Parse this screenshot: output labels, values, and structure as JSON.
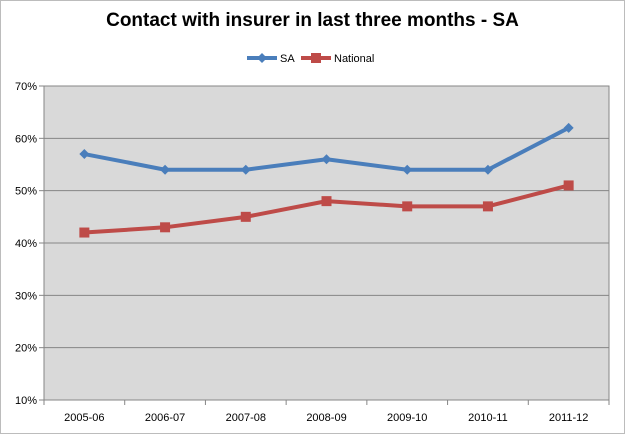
{
  "chart_data": {
    "type": "line",
    "title": "Contact with insurer in last three months - SA",
    "categories": [
      "2005-06",
      "2006-07",
      "2007-08",
      "2008-09",
      "2009-10",
      "2010-11",
      "2011-12"
    ],
    "series": [
      {
        "name": "SA",
        "values": [
          57,
          54,
          54,
          56,
          54,
          54,
          62
        ],
        "color": "#4a7ebb",
        "marker": "diamond"
      },
      {
        "name": "National",
        "values": [
          42,
          43,
          45,
          48,
          47,
          47,
          51
        ],
        "color": "#be4b48",
        "marker": "square"
      }
    ],
    "ylim": [
      10,
      70
    ],
    "yticks": [
      "10%",
      "20%",
      "30%",
      "40%",
      "50%",
      "60%",
      "70%"
    ],
    "xlabel": "",
    "ylabel": "",
    "grid": true,
    "legend": "top-center",
    "plot_background": "#d9d9d9"
  }
}
